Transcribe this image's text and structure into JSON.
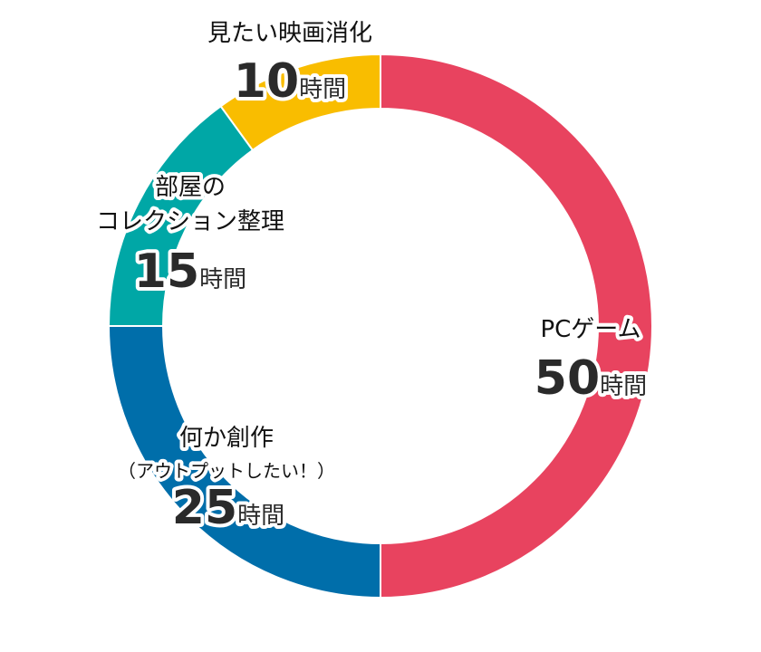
{
  "chart_data": {
    "type": "pie",
    "donut": true,
    "unit": "時間",
    "slices": [
      {
        "name_lines": [
          "PCゲーム"
        ],
        "value": 50,
        "color": "#E8435F"
      },
      {
        "name_lines": [
          "何か創作",
          "（アウトプットしたい！）"
        ],
        "value": 25,
        "color": "#006EAA"
      },
      {
        "name_lines": [
          "部屋の",
          "コレクション整理"
        ],
        "value": 15,
        "color": "#00A7A6"
      },
      {
        "name_lines": [
          "見たい映画消化"
        ],
        "value": 10,
        "color": "#F9BD00"
      }
    ]
  }
}
